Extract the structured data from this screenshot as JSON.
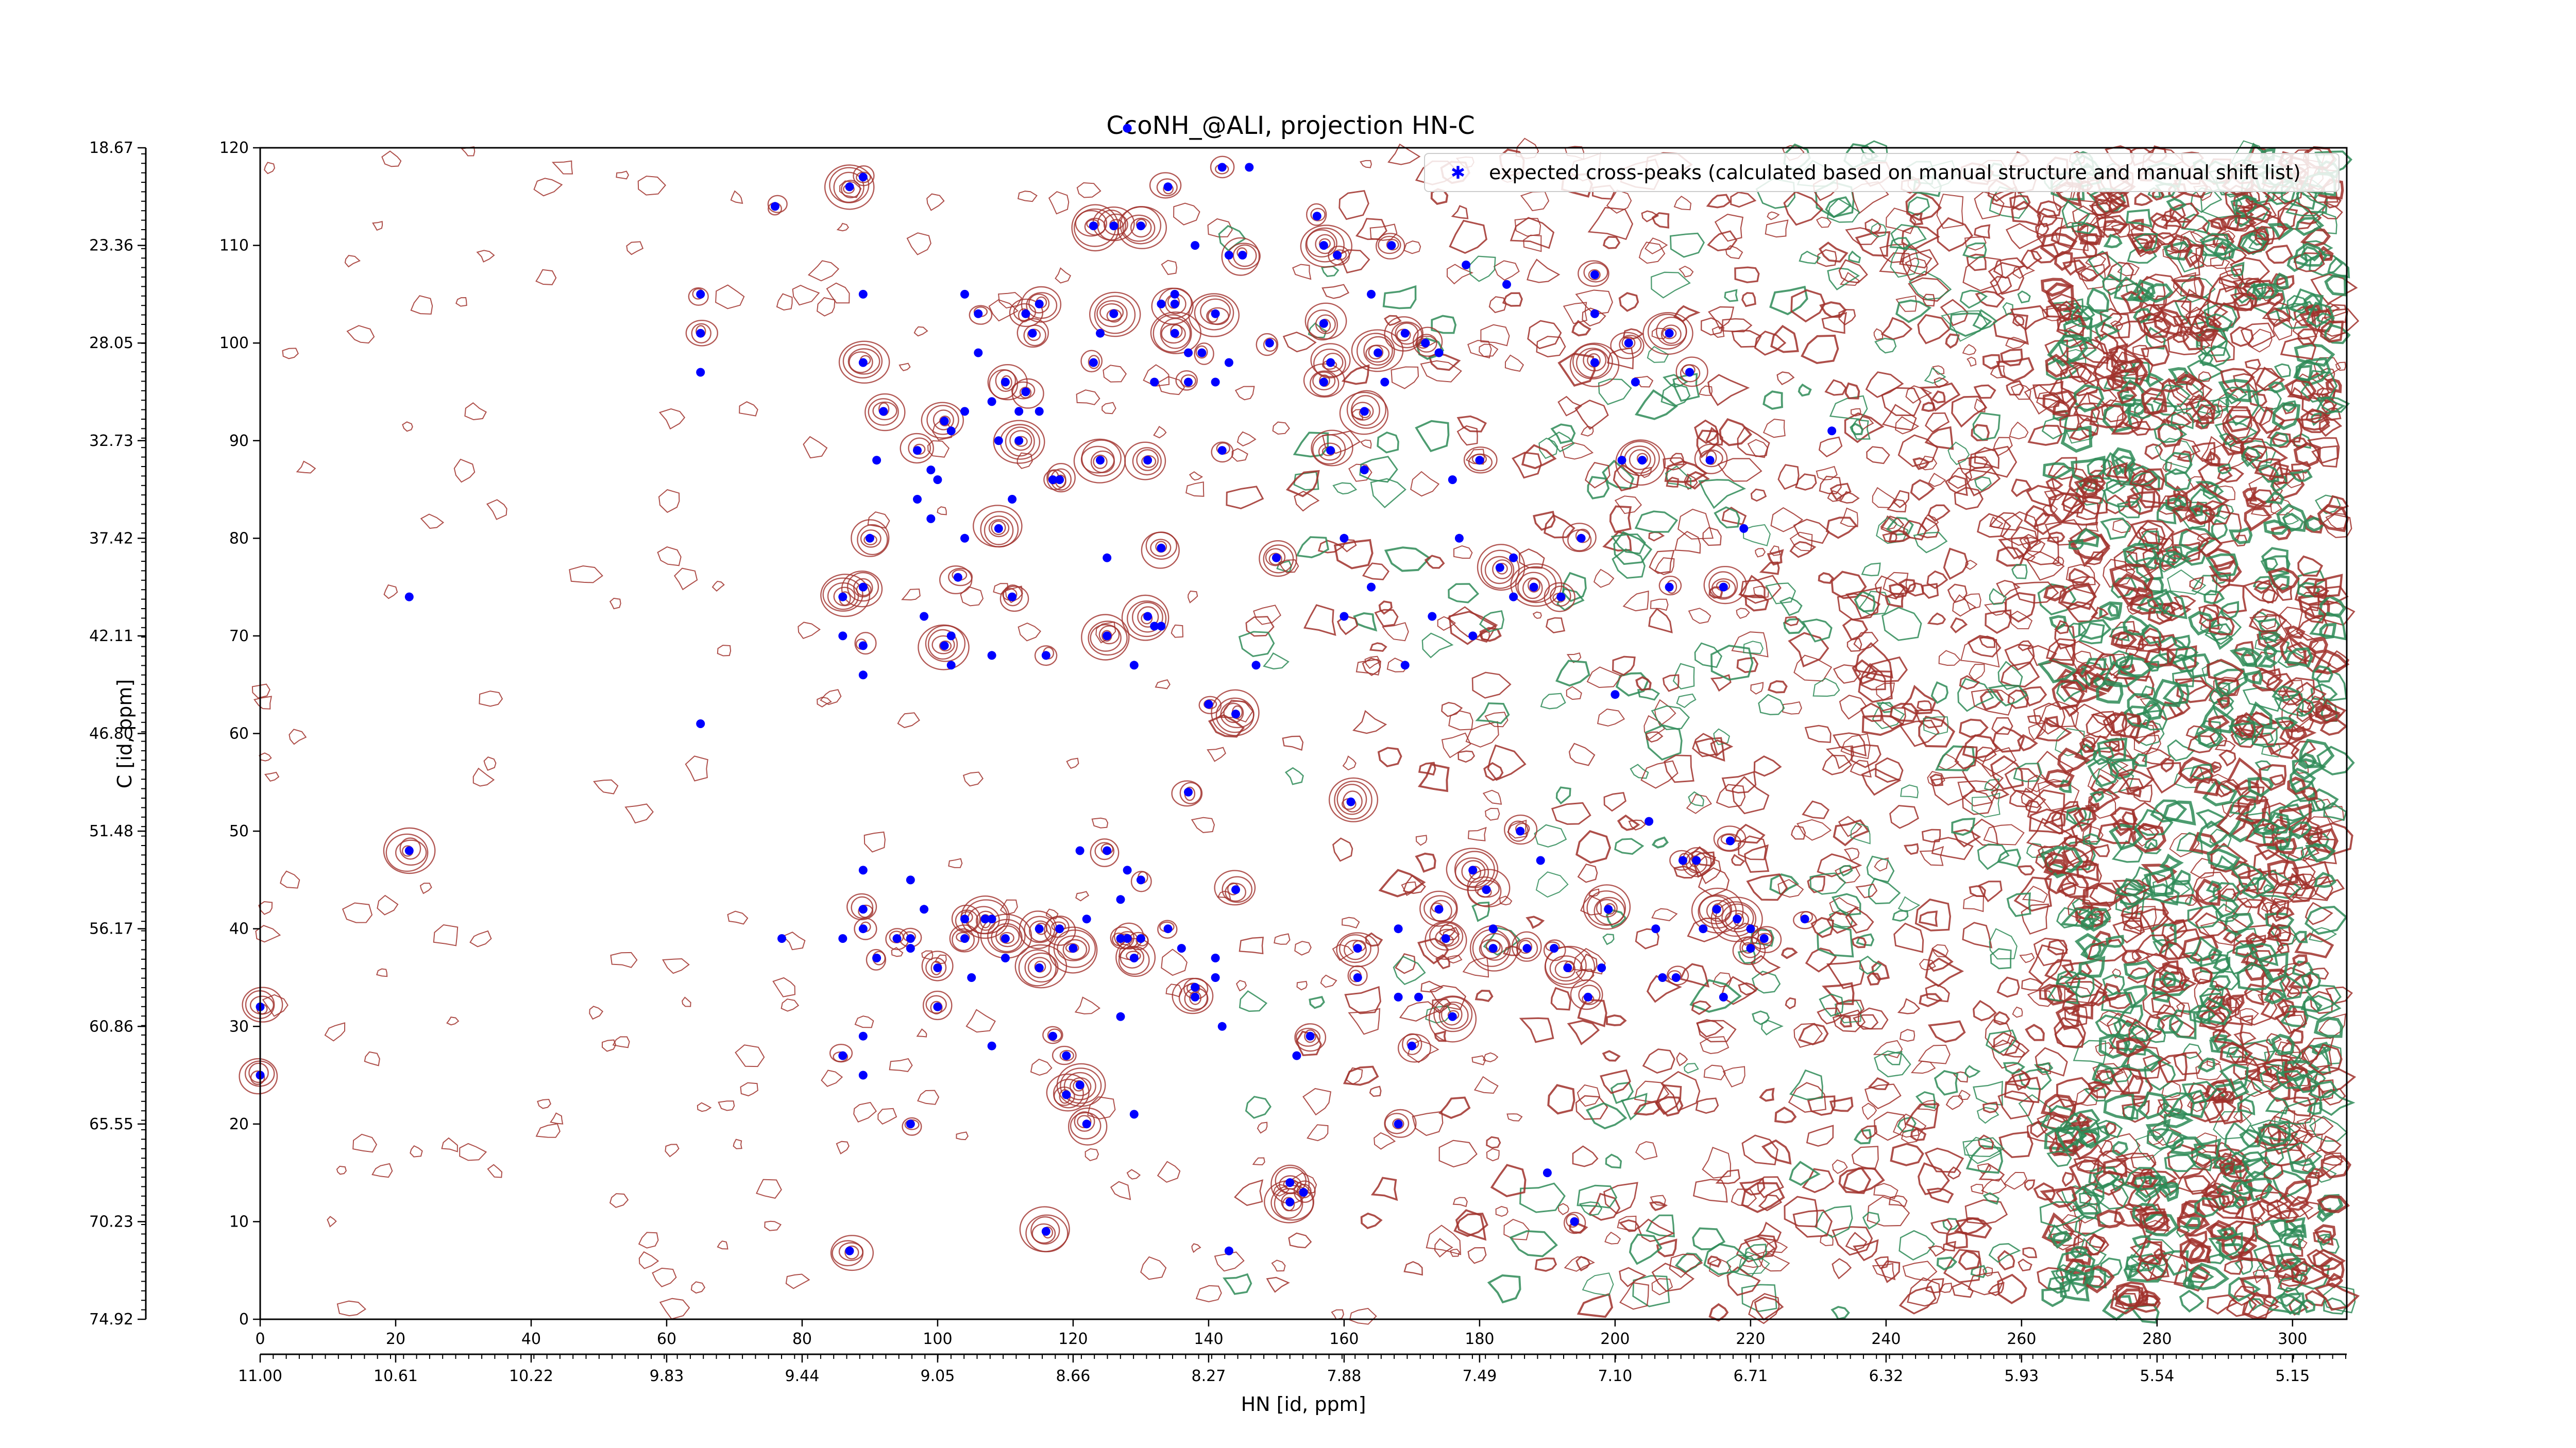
{
  "chart_data": {
    "type": "scatter",
    "title": "CcoNH_@ALI, projection HN-C",
    "xlabel": "HN [id, ppm]",
    "ylabel": "C [id, ppm]",
    "xlim": [
      0,
      308
    ],
    "ylim": [
      0,
      120
    ],
    "x_index_ticks": [
      "0",
      "20",
      "40",
      "60",
      "80",
      "100",
      "120",
      "140",
      "160",
      "180",
      "200",
      "220",
      "240",
      "260",
      "280",
      "300"
    ],
    "x_ppm_ticks": [
      "11.00",
      "10.61",
      "10.22",
      "9.83",
      "9.44",
      "9.05",
      "8.66",
      "8.27",
      "7.88",
      "7.49",
      "7.10",
      "6.71",
      "6.32",
      "5.93",
      "5.54",
      "5.15"
    ],
    "y_index_ticks": [
      "0",
      "10",
      "20",
      "30",
      "40",
      "50",
      "60",
      "70",
      "80",
      "90",
      "100",
      "110",
      "120"
    ],
    "y_ppm_ticks": [
      "74.92",
      "70.23",
      "65.55",
      "60.86",
      "56.17",
      "51.48",
      "46.80",
      "42.11",
      "37.42",
      "32.73",
      "28.05",
      "23.36",
      "18.67"
    ],
    "legend": {
      "label": "expected cross-peaks (calculated based on manual structure and manual shift list)",
      "placement": "top-right"
    },
    "colors": {
      "marker": "#0000ff",
      "contour_positive": "#a0302a",
      "contour_negative": "#2e8b57"
    },
    "series": [
      {
        "name": "expected cross-peaks (calculated based on manual structure and manual shift list)",
        "points": [
          [
            0,
            32
          ],
          [
            0,
            25
          ],
          [
            22,
            74
          ],
          [
            22,
            48
          ],
          [
            65,
            105
          ],
          [
            65,
            101
          ],
          [
            65,
            97
          ],
          [
            65,
            61
          ],
          [
            76,
            114
          ],
          [
            77,
            39
          ],
          [
            86,
            27
          ],
          [
            86,
            39
          ],
          [
            86,
            74
          ],
          [
            86,
            70
          ],
          [
            87,
            116
          ],
          [
            87,
            7
          ],
          [
            89,
            117
          ],
          [
            89,
            105
          ],
          [
            89,
            98
          ],
          [
            89,
            75
          ],
          [
            89,
            69
          ],
          [
            89,
            66
          ],
          [
            89,
            46
          ],
          [
            89,
            42
          ],
          [
            89,
            40
          ],
          [
            89,
            29
          ],
          [
            89,
            25
          ],
          [
            90,
            80
          ],
          [
            91,
            37
          ],
          [
            91,
            88
          ],
          [
            92,
            93
          ],
          [
            94,
            39
          ],
          [
            96,
            45
          ],
          [
            96,
            39
          ],
          [
            96,
            38
          ],
          [
            96,
            20
          ],
          [
            97,
            89
          ],
          [
            97,
            84
          ],
          [
            98,
            72
          ],
          [
            98,
            42
          ],
          [
            99,
            82
          ],
          [
            99,
            87
          ],
          [
            100,
            86
          ],
          [
            100,
            36
          ],
          [
            100,
            32
          ],
          [
            101,
            69
          ],
          [
            101,
            92
          ],
          [
            102,
            91
          ],
          [
            102,
            70
          ],
          [
            102,
            67
          ],
          [
            103,
            76
          ],
          [
            104,
            93
          ],
          [
            104,
            105
          ],
          [
            104,
            80
          ],
          [
            104,
            39
          ],
          [
            104,
            41
          ],
          [
            105,
            35
          ],
          [
            106,
            99
          ],
          [
            106,
            103
          ],
          [
            107,
            41
          ],
          [
            108,
            94
          ],
          [
            108,
            68
          ],
          [
            108,
            28
          ],
          [
            108,
            41
          ],
          [
            109,
            90
          ],
          [
            109,
            81
          ],
          [
            110,
            96
          ],
          [
            110,
            37
          ],
          [
            110,
            39
          ],
          [
            111,
            84
          ],
          [
            111,
            74
          ],
          [
            112,
            93
          ],
          [
            112,
            90
          ],
          [
            113,
            95
          ],
          [
            113,
            103
          ],
          [
            114,
            101
          ],
          [
            115,
            93
          ],
          [
            115,
            104
          ],
          [
            115,
            36
          ],
          [
            115,
            40
          ],
          [
            116,
            68
          ],
          [
            116,
            9
          ],
          [
            117,
            86
          ],
          [
            117,
            29
          ],
          [
            118,
            40
          ],
          [
            118,
            86
          ],
          [
            119,
            27
          ],
          [
            119,
            23
          ],
          [
            120,
            38
          ],
          [
            121,
            24
          ],
          [
            121,
            48
          ],
          [
            122,
            41
          ],
          [
            122,
            20
          ],
          [
            123,
            112
          ],
          [
            123,
            98
          ],
          [
            124,
            88
          ],
          [
            124,
            101
          ],
          [
            125,
            78
          ],
          [
            125,
            70
          ],
          [
            125,
            48
          ],
          [
            126,
            103
          ],
          [
            126,
            112
          ],
          [
            127,
            43
          ],
          [
            127,
            39
          ],
          [
            127,
            31
          ],
          [
            128,
            46
          ],
          [
            128,
            39
          ],
          [
            128,
            122
          ],
          [
            129,
            67
          ],
          [
            129,
            37
          ],
          [
            129,
            21
          ],
          [
            130,
            112
          ],
          [
            130,
            45
          ],
          [
            130,
            39
          ],
          [
            131,
            72
          ],
          [
            131,
            88
          ],
          [
            132,
            71
          ],
          [
            132,
            96
          ],
          [
            133,
            79
          ],
          [
            133,
            71
          ],
          [
            133,
            104
          ],
          [
            134,
            116
          ],
          [
            134,
            40
          ],
          [
            135,
            105
          ],
          [
            135,
            104
          ],
          [
            135,
            101
          ],
          [
            136,
            38
          ],
          [
            137,
            54
          ],
          [
            137,
            96
          ],
          [
            137,
            99
          ],
          [
            138,
            110
          ],
          [
            138,
            34
          ],
          [
            138,
            33
          ],
          [
            139,
            99
          ],
          [
            140,
            63
          ],
          [
            141,
            103
          ],
          [
            141,
            96
          ],
          [
            141,
            37
          ],
          [
            141,
            35
          ],
          [
            142,
            118
          ],
          [
            142,
            89
          ],
          [
            142,
            30
          ],
          [
            143,
            109
          ],
          [
            143,
            7
          ],
          [
            143,
            98
          ],
          [
            144,
            62
          ],
          [
            144,
            44
          ],
          [
            145,
            109
          ],
          [
            146,
            118
          ],
          [
            147,
            67
          ],
          [
            149,
            100
          ],
          [
            150,
            78
          ],
          [
            152,
            14
          ],
          [
            152,
            12
          ],
          [
            153,
            27
          ],
          [
            154,
            13
          ],
          [
            155,
            29
          ],
          [
            156,
            113
          ],
          [
            157,
            110
          ],
          [
            157,
            102
          ],
          [
            157,
            96
          ],
          [
            158,
            98
          ],
          [
            158,
            89
          ],
          [
            159,
            109
          ],
          [
            160,
            80
          ],
          [
            160,
            72
          ],
          [
            161,
            53
          ],
          [
            162,
            38
          ],
          [
            162,
            35
          ],
          [
            163,
            93
          ],
          [
            163,
            87
          ],
          [
            164,
            105
          ],
          [
            164,
            75
          ],
          [
            165,
            99
          ],
          [
            166,
            96
          ],
          [
            167,
            110
          ],
          [
            168,
            40
          ],
          [
            168,
            33
          ],
          [
            168,
            20
          ],
          [
            169,
            101
          ],
          [
            169,
            67
          ],
          [
            170,
            28
          ],
          [
            171,
            33
          ],
          [
            172,
            100
          ],
          [
            173,
            72
          ],
          [
            174,
            99
          ],
          [
            174,
            42
          ],
          [
            175,
            39
          ],
          [
            176,
            86
          ],
          [
            176,
            31
          ],
          [
            177,
            80
          ],
          [
            178,
            108
          ],
          [
            179,
            70
          ],
          [
            179,
            46
          ],
          [
            180,
            88
          ],
          [
            181,
            44
          ],
          [
            182,
            40
          ],
          [
            182,
            38
          ],
          [
            183,
            77
          ],
          [
            184,
            106
          ],
          [
            185,
            78
          ],
          [
            185,
            74
          ],
          [
            186,
            50
          ],
          [
            187,
            38
          ],
          [
            188,
            75
          ],
          [
            189,
            47
          ],
          [
            190,
            15
          ],
          [
            191,
            38
          ],
          [
            192,
            74
          ],
          [
            193,
            36
          ],
          [
            194,
            10
          ],
          [
            195,
            80
          ],
          [
            196,
            33
          ],
          [
            197,
            107
          ],
          [
            197,
            103
          ],
          [
            197,
            98
          ],
          [
            198,
            36
          ],
          [
            199,
            42
          ],
          [
            200,
            64
          ],
          [
            201,
            88
          ],
          [
            202,
            100
          ],
          [
            203,
            96
          ],
          [
            204,
            88
          ],
          [
            205,
            51
          ],
          [
            206,
            40
          ],
          [
            207,
            35
          ],
          [
            208,
            101
          ],
          [
            208,
            75
          ],
          [
            209,
            35
          ],
          [
            210,
            47
          ],
          [
            211,
            97
          ],
          [
            212,
            47
          ],
          [
            213,
            40
          ],
          [
            214,
            88
          ],
          [
            215,
            42
          ],
          [
            216,
            33
          ],
          [
            216,
            75
          ],
          [
            217,
            49
          ],
          [
            218,
            41
          ],
          [
            219,
            81
          ],
          [
            220,
            40
          ],
          [
            220,
            38
          ],
          [
            222,
            39
          ],
          [
            228,
            41
          ],
          [
            232,
            91
          ]
        ]
      }
    ]
  }
}
